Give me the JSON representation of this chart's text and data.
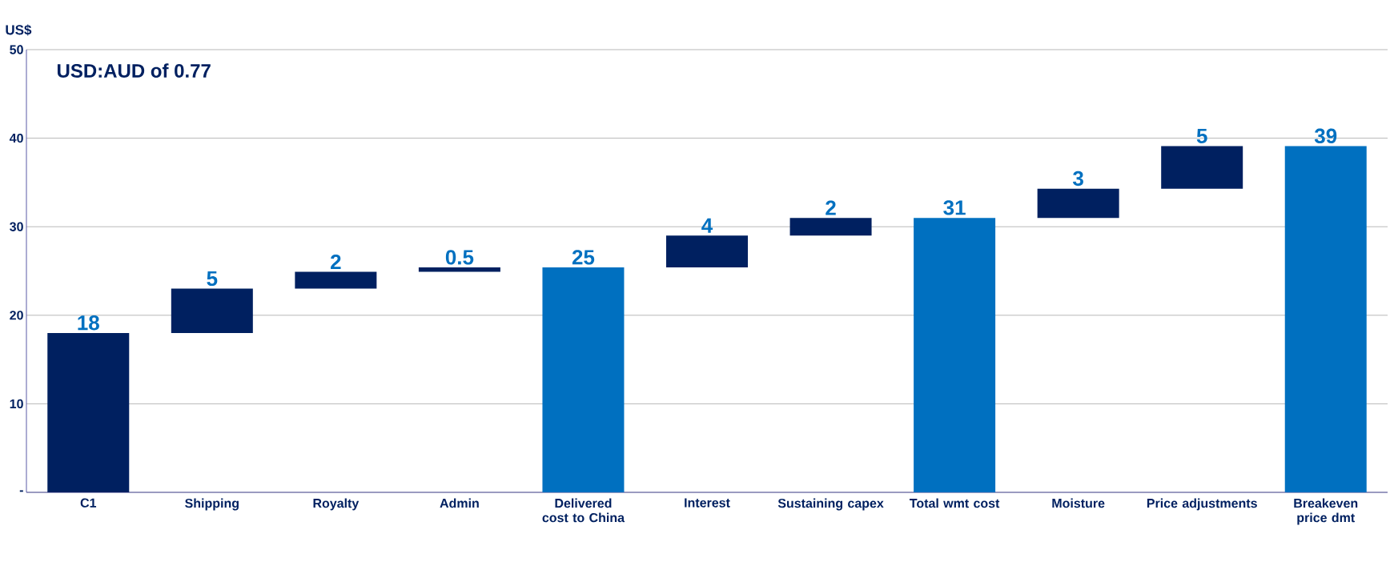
{
  "chart_data": {
    "type": "bar",
    "ylabel": "US$",
    "annotations": [
      "USD:AUD of 0.77"
    ],
    "categories": [
      "C1",
      "Shipping",
      "Royalty",
      "Admin",
      "Delivered cost to China",
      "Interest",
      "Sustaining capex",
      "Total wmt cost",
      "Moisture",
      "Price adjustments",
      "Breakeven price dmt"
    ],
    "values": [
      18,
      5,
      1.9,
      0.5,
      25.4,
      3.6,
      2,
      31,
      3.3,
      4.8,
      39.1
    ],
    "base": [
      0,
      18,
      23,
      24.9,
      0,
      25.4,
      29,
      0,
      31,
      34.3,
      0
    ],
    "value_labels": [
      "18",
      "5",
      "2",
      "0.5",
      "25",
      "4",
      "2",
      "31",
      "3",
      "5",
      "39"
    ],
    "colors": [
      "#002060",
      "#002060",
      "#002060",
      "#002060",
      "#0070c0",
      "#002060",
      "#002060",
      "#0070c0",
      "#002060",
      "#002060",
      "#0070c0"
    ],
    "ylim": [
      0,
      50
    ],
    "yticks": [
      {
        "value": 0,
        "label": "-"
      },
      10,
      20,
      30,
      40,
      50
    ],
    "grid": "y"
  }
}
